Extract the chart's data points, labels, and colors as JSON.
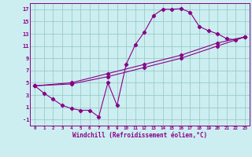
{
  "bg_color": "#cceef0",
  "grid_color": "#99cccc",
  "line_color": "#880088",
  "xlabel": "Windchill (Refroidissement éolien,°C)",
  "xlim": [
    -0.5,
    23.5
  ],
  "ylim": [
    -2,
    18
  ],
  "xtick_values": [
    0,
    1,
    2,
    3,
    4,
    5,
    6,
    7,
    8,
    9,
    10,
    11,
    12,
    13,
    14,
    15,
    16,
    17,
    18,
    19,
    20,
    21,
    22,
    23
  ],
  "ytick_values": [
    -1,
    1,
    3,
    5,
    7,
    9,
    11,
    13,
    15,
    17
  ],
  "line1_x": [
    0,
    1,
    2,
    3,
    4,
    5,
    6,
    7,
    8,
    9,
    10,
    11,
    12,
    13,
    14,
    15,
    16,
    17,
    18,
    19,
    20,
    21,
    22,
    23
  ],
  "line1_y": [
    4.5,
    3.3,
    2.3,
    1.3,
    0.8,
    0.5,
    0.5,
    -0.55,
    5.0,
    1.3,
    8.0,
    11.2,
    13.3,
    16.0,
    17.0,
    17.0,
    17.1,
    16.5,
    14.2,
    13.5,
    13.0,
    12.2,
    12.0,
    12.5
  ],
  "line2_x": [
    0,
    23
  ],
  "line2_y": [
    4.5,
    12.5
  ],
  "line3_x": [
    0,
    23
  ],
  "line3_y": [
    4.5,
    12.5
  ],
  "line2_full_x": [
    0,
    4,
    8,
    12,
    16,
    20,
    23
  ],
  "line2_full_y": [
    4.5,
    5.0,
    6.5,
    8.0,
    9.5,
    11.5,
    12.5
  ],
  "line3_full_x": [
    0,
    4,
    8,
    12,
    16,
    20,
    23
  ],
  "line3_full_y": [
    4.5,
    4.8,
    6.0,
    7.5,
    9.0,
    11.0,
    12.5
  ]
}
